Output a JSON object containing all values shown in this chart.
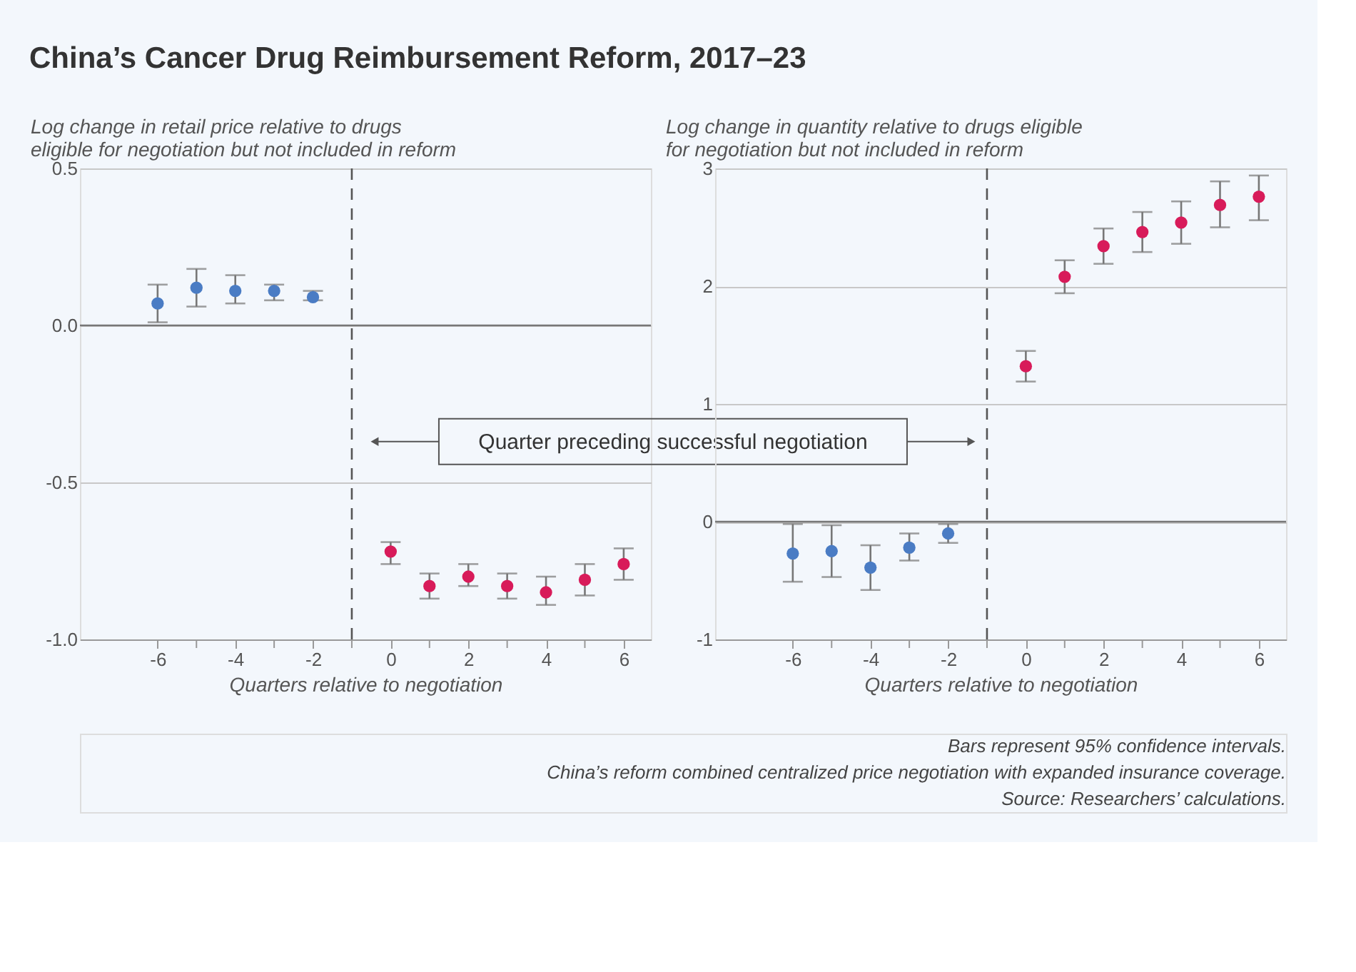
{
  "chart_data": [
    {
      "type": "scatter",
      "title": "China’s Cancer Drug Reimbursement Reform, 2017–23",
      "ylabel": "Log change in retail price relative to drugs eligible for negotiation but not included in reform",
      "xlabel": "Quarters relative to negotiation",
      "series": [
        {
          "color": "#4a7cc4",
          "x": [
            -6,
            -5,
            -4,
            -3,
            -2
          ],
          "values": [
            0.07,
            0.12,
            0.11,
            0.11,
            0.09
          ],
          "errors": [
            [
              0.01,
              0.13
            ],
            [
              0.06,
              0.18
            ],
            [
              0.07,
              0.16
            ],
            [
              0.08,
              0.13
            ],
            [
              0.08,
              0.11
            ]
          ]
        },
        {
          "color": "#d81b5a",
          "x": [
            0,
            1,
            2,
            3,
            4,
            5,
            6
          ],
          "values": [
            -0.72,
            -0.83,
            -0.8,
            -0.83,
            -0.85,
            -0.81,
            -0.76
          ],
          "errors": [
            [
              -0.76,
              -0.69
            ],
            [
              -0.87,
              -0.79
            ],
            [
              -0.83,
              -0.76
            ],
            [
              -0.87,
              -0.79
            ],
            [
              -0.89,
              -0.8
            ],
            [
              -0.86,
              -0.76
            ],
            [
              -0.81,
              -0.71
            ]
          ]
        }
      ],
      "xlim": [
        -8,
        6.7
      ],
      "xticks": [
        -6,
        {
          "value": -5,
          "label": null
        },
        -4,
        {
          "value": -3,
          "label": null
        },
        -2,
        {
          "value": -1,
          "label": null
        },
        0,
        {
          "value": 1,
          "label": null
        },
        2,
        {
          "value": 3,
          "label": null
        },
        4,
        {
          "value": 5,
          "label": null
        },
        6
      ],
      "ylim": [
        -1,
        0.5
      ],
      "yticks": [
        {
          "value": -1,
          "label": "-1.0"
        },
        -0.5,
        {
          "value": 0,
          "label": "0.0"
        },
        0.5
      ],
      "grid": "y",
      "legend": false,
      "marker": "circle",
      "ref_lines": [
        {
          "axis": "x",
          "value": -1,
          "line_style": "dashed",
          "color": "#555555"
        },
        {
          "axis": "y",
          "value": 0,
          "color": "#777777"
        }
      ],
      "annotations": [
        "Quarter preceding successful negotiation",
        "Bars represent 95% confidence intervals.",
        "China’s reform combined centralized price negotiation with expanded insurance coverage.",
        "Source: Researchers’ calculations."
      ]
    },
    {
      "type": "scatter",
      "ylabel": "Log change in quantity relative to drugs eligible for negotiation but not included in reform",
      "xlabel": "Quarters relative to negotiation",
      "series": [
        {
          "color": "#4a7cc4",
          "x": [
            -6,
            -5,
            -4,
            -3,
            -2
          ],
          "values": [
            -0.27,
            -0.25,
            -0.39,
            -0.22,
            -0.1
          ],
          "errors": [
            [
              -0.51,
              -0.02
            ],
            [
              -0.47,
              -0.03
            ],
            [
              -0.58,
              -0.2
            ],
            [
              -0.33,
              -0.1
            ],
            [
              -0.18,
              -0.02
            ]
          ]
        },
        {
          "color": "#d81b5a",
          "x": [
            0,
            1,
            2,
            3,
            4,
            5,
            6
          ],
          "values": [
            1.32,
            2.08,
            2.34,
            2.46,
            2.54,
            2.69,
            2.76
          ],
          "errors": [
            [
              1.19,
              1.45
            ],
            [
              1.94,
              2.22
            ],
            [
              2.19,
              2.49
            ],
            [
              2.29,
              2.63
            ],
            [
              2.36,
              2.72
            ],
            [
              2.5,
              2.89
            ],
            [
              2.56,
              2.94
            ]
          ]
        }
      ],
      "xlim": [
        -8,
        6.7
      ],
      "xticks": [
        -6,
        {
          "value": -5,
          "label": null
        },
        -4,
        {
          "value": -3,
          "label": null
        },
        -2,
        {
          "value": -1,
          "label": null
        },
        0,
        {
          "value": 1,
          "label": null
        },
        2,
        {
          "value": 3,
          "label": null
        },
        4,
        {
          "value": 5,
          "label": null
        },
        6
      ],
      "ylim": [
        -1,
        3
      ],
      "yticks": [
        -1,
        0,
        1,
        2,
        3
      ],
      "grid": "y",
      "legend": false,
      "marker": "circle",
      "ref_lines": [
        {
          "axis": "x",
          "value": -1,
          "line_style": "dashed",
          "color": "#555555"
        },
        {
          "axis": "y",
          "value": 0,
          "color": "#777777"
        }
      ]
    }
  ]
}
